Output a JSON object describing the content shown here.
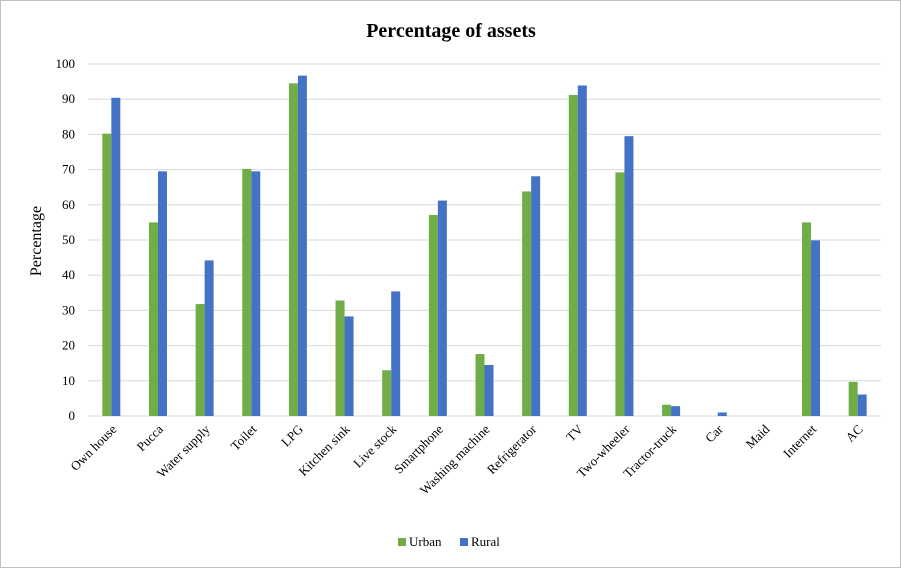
{
  "chart_data": {
    "type": "bar",
    "title": "Percentage of assets",
    "xlabel": "",
    "ylabel": "Percentage",
    "ylim": [
      0,
      100
    ],
    "yticks": [
      "0",
      "10",
      "20",
      "30",
      "40",
      "50",
      "60",
      "70",
      "80",
      "90",
      "100"
    ],
    "grid": true,
    "legend_position": "bottom",
    "categories": [
      "Own house",
      "Pucca",
      "Water supply",
      "Toilet",
      "LPG",
      "Kitchen sink",
      "Live stock",
      "Smartphone",
      "Washing machine",
      "Refrigerator",
      "TV",
      "Two-wheeler",
      "Tractor-truck",
      "Car",
      "Maid",
      "Internet",
      "AC"
    ],
    "series": [
      {
        "name": "Urban",
        "color": "#70ad47",
        "values": [
          80.2,
          55,
          31.8,
          70.2,
          94.5,
          32.8,
          13,
          57.1,
          17.6,
          63.8,
          91.2,
          69.2,
          3.2,
          0,
          0,
          55,
          9.7
        ]
      },
      {
        "name": "Rural",
        "color": "#4472c4",
        "values": [
          90.4,
          69.5,
          44.2,
          69.5,
          96.7,
          28.3,
          35.4,
          61.2,
          14.5,
          68.1,
          93.9,
          79.5,
          2.8,
          1,
          0,
          49.9,
          6.1
        ]
      }
    ]
  }
}
